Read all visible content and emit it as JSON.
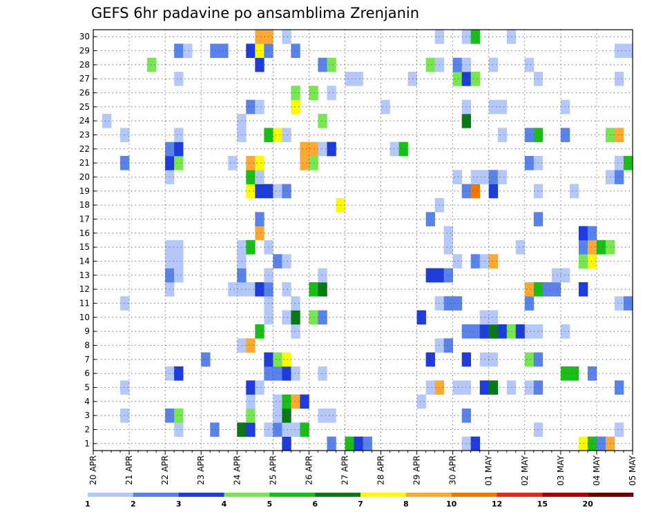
{
  "chart_data": {
    "type": "heatmap",
    "title": "GEFS 6hr padavine po ansamblima Zrenjanin",
    "x_tick_labels": [
      "20 APR",
      "21 APR",
      "22 APR",
      "23 APR",
      "24 APR",
      "25 APR",
      "26 APR",
      "27 APR",
      "28 APR",
      "29 APR",
      "30 APR",
      "01 MAY",
      "02 MAY",
      "03 MAY",
      "04 MAY",
      "05 MAY"
    ],
    "y_tick_labels": [
      "1",
      "2",
      "3",
      "4",
      "5",
      "6",
      "7",
      "8",
      "9",
      "10",
      "11",
      "12",
      "13",
      "14",
      "15",
      "16",
      "17",
      "18",
      "19",
      "20",
      "21",
      "22",
      "23",
      "24",
      "25",
      "26",
      "27",
      "28",
      "29",
      "30"
    ],
    "members": 30,
    "steps": 60,
    "step_hours": 6,
    "grid": true,
    "legend": {
      "position": "bottom",
      "labels": [
        "1",
        "2",
        "3",
        "4",
        "5",
        "6",
        "7",
        "8",
        "10",
        "12",
        "15",
        "20"
      ],
      "bins": [
        {
          "min": 1,
          "max": 2,
          "color": "#b4c8fa"
        },
        {
          "min": 2,
          "max": 3,
          "color": "#5a82eb"
        },
        {
          "min": 3,
          "max": 4,
          "color": "#1e3cdc"
        },
        {
          "min": 4,
          "max": 5,
          "color": "#78e650"
        },
        {
          "min": 5,
          "max": 6,
          "color": "#19be19"
        },
        {
          "min": 6,
          "max": 7,
          "color": "#0a7814"
        },
        {
          "min": 7,
          "max": 8,
          "color": "#fafa00"
        },
        {
          "min": 8,
          "max": 10,
          "color": "#faaa32"
        },
        {
          "min": 10,
          "max": 12,
          "color": "#f07800"
        },
        {
          "min": 12,
          "max": 15,
          "color": "#e62814"
        },
        {
          "min": 15,
          "max": 20,
          "color": "#aa0000"
        },
        {
          "min": 20,
          "max": 30,
          "color": "#6e0000"
        }
      ]
    },
    "cells": [
      [
        1,
        22,
        3
      ],
      [
        1,
        27,
        2
      ],
      [
        1,
        29,
        5
      ],
      [
        1,
        30,
        3
      ],
      [
        1,
        31,
        2
      ],
      [
        1,
        42,
        1
      ],
      [
        1,
        43,
        3
      ],
      [
        1,
        55,
        7
      ],
      [
        1,
        56,
        5
      ],
      [
        1,
        57,
        2
      ],
      [
        1,
        58,
        9
      ],
      [
        2,
        10,
        1
      ],
      [
        2,
        14,
        2
      ],
      [
        2,
        17,
        6
      ],
      [
        2,
        18,
        3
      ],
      [
        2,
        20,
        1
      ],
      [
        2,
        21,
        2
      ],
      [
        2,
        22,
        1
      ],
      [
        2,
        23,
        1
      ],
      [
        2,
        24,
        5
      ],
      [
        2,
        50,
        1
      ],
      [
        2,
        59,
        1
      ],
      [
        3,
        4,
        1
      ],
      [
        3,
        9,
        2
      ],
      [
        3,
        10,
        4
      ],
      [
        3,
        18,
        4
      ],
      [
        3,
        21,
        1
      ],
      [
        3,
        22,
        6
      ],
      [
        3,
        26,
        1
      ],
      [
        3,
        27,
        1
      ],
      [
        3,
        42,
        2
      ],
      [
        4,
        18,
        1
      ],
      [
        4,
        21,
        1
      ],
      [
        4,
        22,
        5
      ],
      [
        4,
        23,
        8
      ],
      [
        4,
        24,
        3
      ],
      [
        4,
        37,
        1
      ],
      [
        5,
        4,
        1
      ],
      [
        5,
        18,
        3
      ],
      [
        5,
        19,
        1
      ],
      [
        5,
        38,
        1
      ],
      [
        5,
        39,
        9
      ],
      [
        5,
        41,
        1
      ],
      [
        5,
        42,
        1
      ],
      [
        5,
        44,
        3
      ],
      [
        5,
        45,
        6
      ],
      [
        5,
        47,
        1
      ],
      [
        5,
        49,
        1
      ],
      [
        5,
        50,
        2
      ],
      [
        5,
        59,
        2
      ],
      [
        6,
        9,
        1
      ],
      [
        6,
        10,
        3
      ],
      [
        6,
        20,
        2
      ],
      [
        6,
        21,
        2
      ],
      [
        6,
        22,
        3
      ],
      [
        6,
        23,
        1
      ],
      [
        6,
        26,
        1
      ],
      [
        6,
        53,
        5
      ],
      [
        6,
        54,
        5
      ],
      [
        6,
        56,
        2
      ],
      [
        7,
        13,
        2
      ],
      [
        7,
        20,
        3
      ],
      [
        7,
        21,
        4
      ],
      [
        7,
        22,
        7
      ],
      [
        7,
        38,
        3
      ],
      [
        7,
        42,
        3
      ],
      [
        7,
        44,
        1
      ],
      [
        7,
        45,
        1
      ],
      [
        7,
        49,
        4
      ],
      [
        7,
        50,
        2
      ],
      [
        8,
        17,
        1
      ],
      [
        8,
        18,
        8
      ],
      [
        8,
        39,
        1
      ],
      [
        8,
        40,
        2
      ],
      [
        9,
        19,
        5
      ],
      [
        9,
        23,
        1
      ],
      [
        9,
        42,
        2
      ],
      [
        9,
        43,
        2
      ],
      [
        9,
        44,
        3
      ],
      [
        9,
        45,
        6
      ],
      [
        9,
        46,
        3
      ],
      [
        9,
        47,
        4
      ],
      [
        9,
        48,
        3
      ],
      [
        9,
        49,
        1
      ],
      [
        9,
        50,
        1
      ],
      [
        9,
        53,
        1
      ],
      [
        10,
        20,
        1
      ],
      [
        10,
        22,
        1
      ],
      [
        10,
        23,
        6
      ],
      [
        10,
        25,
        4
      ],
      [
        10,
        26,
        2
      ],
      [
        10,
        37,
        3
      ],
      [
        10,
        44,
        1
      ],
      [
        10,
        45,
        1
      ],
      [
        11,
        4,
        1
      ],
      [
        11,
        20,
        1
      ],
      [
        11,
        23,
        1
      ],
      [
        11,
        39,
        1
      ],
      [
        11,
        40,
        2
      ],
      [
        11,
        41,
        2
      ],
      [
        11,
        49,
        2
      ],
      [
        11,
        59,
        1
      ],
      [
        11,
        60,
        2
      ],
      [
        12,
        9,
        1
      ],
      [
        12,
        16,
        1
      ],
      [
        12,
        17,
        1
      ],
      [
        12,
        18,
        1
      ],
      [
        12,
        19,
        3
      ],
      [
        12,
        20,
        2
      ],
      [
        12,
        22,
        1
      ],
      [
        12,
        25,
        5
      ],
      [
        12,
        26,
        6
      ],
      [
        12,
        49,
        9
      ],
      [
        12,
        50,
        5
      ],
      [
        12,
        51,
        2
      ],
      [
        12,
        52,
        2
      ],
      [
        12,
        55,
        3
      ],
      [
        13,
        9,
        2
      ],
      [
        13,
        10,
        1
      ],
      [
        13,
        17,
        2
      ],
      [
        13,
        20,
        1
      ],
      [
        13,
        26,
        1
      ],
      [
        13,
        38,
        3
      ],
      [
        13,
        39,
        3
      ],
      [
        13,
        40,
        2
      ],
      [
        13,
        52,
        1
      ],
      [
        13,
        53,
        1
      ],
      [
        14,
        9,
        1
      ],
      [
        14,
        10,
        1
      ],
      [
        14,
        17,
        1
      ],
      [
        14,
        21,
        2
      ],
      [
        14,
        22,
        1
      ],
      [
        14,
        41,
        1
      ],
      [
        14,
        43,
        2
      ],
      [
        14,
        44,
        1
      ],
      [
        14,
        45,
        9
      ],
      [
        14,
        55,
        4
      ],
      [
        14,
        56,
        7
      ],
      [
        15,
        9,
        1
      ],
      [
        15,
        10,
        1
      ],
      [
        15,
        17,
        1
      ],
      [
        15,
        18,
        5
      ],
      [
        15,
        20,
        1
      ],
      [
        15,
        40,
        1
      ],
      [
        15,
        48,
        1
      ],
      [
        15,
        55,
        2
      ],
      [
        15,
        56,
        8
      ],
      [
        15,
        57,
        5
      ],
      [
        15,
        58,
        4
      ],
      [
        16,
        19,
        8
      ],
      [
        16,
        40,
        1
      ],
      [
        16,
        55,
        3
      ],
      [
        16,
        56,
        2
      ],
      [
        17,
        19,
        2
      ],
      [
        17,
        38,
        2
      ],
      [
        17,
        50,
        2
      ],
      [
        18,
        28,
        7
      ],
      [
        18,
        39,
        1
      ],
      [
        19,
        18,
        7
      ],
      [
        19,
        19,
        3
      ],
      [
        19,
        20,
        3
      ],
      [
        19,
        21,
        1
      ],
      [
        19,
        22,
        2
      ],
      [
        19,
        42,
        2
      ],
      [
        19,
        43,
        11
      ],
      [
        19,
        45,
        3
      ],
      [
        19,
        50,
        1
      ],
      [
        19,
        54,
        1
      ],
      [
        20,
        9,
        1
      ],
      [
        20,
        18,
        5
      ],
      [
        20,
        19,
        1
      ],
      [
        20,
        41,
        1
      ],
      [
        20,
        43,
        1
      ],
      [
        20,
        44,
        1
      ],
      [
        20,
        45,
        2
      ],
      [
        20,
        46,
        1
      ],
      [
        20,
        58,
        1
      ],
      [
        20,
        59,
        2
      ],
      [
        21,
        4,
        2
      ],
      [
        21,
        9,
        3
      ],
      [
        21,
        10,
        4
      ],
      [
        21,
        16,
        1
      ],
      [
        21,
        18,
        9
      ],
      [
        21,
        19,
        7
      ],
      [
        21,
        24,
        9
      ],
      [
        21,
        25,
        4
      ],
      [
        21,
        49,
        2
      ],
      [
        21,
        50,
        1
      ],
      [
        21,
        59,
        1
      ],
      [
        21,
        60,
        5
      ],
      [
        22,
        9,
        2
      ],
      [
        22,
        10,
        3
      ],
      [
        22,
        24,
        8
      ],
      [
        22,
        25,
        9
      ],
      [
        22,
        26,
        1
      ],
      [
        22,
        27,
        3
      ],
      [
        22,
        34,
        1
      ],
      [
        22,
        35,
        5
      ],
      [
        23,
        4,
        1
      ],
      [
        23,
        10,
        1
      ],
      [
        23,
        17,
        1
      ],
      [
        23,
        20,
        5
      ],
      [
        23,
        21,
        7
      ],
      [
        23,
        22,
        1
      ],
      [
        23,
        46,
        1
      ],
      [
        23,
        49,
        2
      ],
      [
        23,
        50,
        5
      ],
      [
        23,
        53,
        2
      ],
      [
        23,
        58,
        4
      ],
      [
        23,
        59,
        8
      ],
      [
        24,
        2,
        1
      ],
      [
        24,
        17,
        1
      ],
      [
        24,
        26,
        4
      ],
      [
        24,
        42,
        6
      ],
      [
        25,
        18,
        2
      ],
      [
        25,
        19,
        1
      ],
      [
        25,
        23,
        7
      ],
      [
        25,
        33,
        1
      ],
      [
        25,
        42,
        1
      ],
      [
        25,
        45,
        1
      ],
      [
        25,
        46,
        1
      ],
      [
        25,
        53,
        1
      ],
      [
        26,
        23,
        4
      ],
      [
        26,
        25,
        4
      ],
      [
        26,
        27,
        1
      ],
      [
        27,
        10,
        1
      ],
      [
        27,
        29,
        1
      ],
      [
        27,
        30,
        1
      ],
      [
        27,
        36,
        1
      ],
      [
        27,
        41,
        4
      ],
      [
        27,
        42,
        3
      ],
      [
        27,
        43,
        4
      ],
      [
        27,
        50,
        1
      ],
      [
        27,
        59,
        1
      ],
      [
        28,
        7,
        4
      ],
      [
        28,
        19,
        3
      ],
      [
        28,
        26,
        2
      ],
      [
        28,
        27,
        4
      ],
      [
        28,
        38,
        4
      ],
      [
        28,
        39,
        1
      ],
      [
        28,
        41,
        2
      ],
      [
        28,
        42,
        1
      ],
      [
        28,
        45,
        1
      ],
      [
        28,
        49,
        1
      ],
      [
        29,
        10,
        2
      ],
      [
        29,
        11,
        1
      ],
      [
        29,
        14,
        2
      ],
      [
        29,
        15,
        2
      ],
      [
        29,
        18,
        3
      ],
      [
        29,
        19,
        7
      ],
      [
        29,
        20,
        2
      ],
      [
        29,
        23,
        2
      ],
      [
        29,
        59,
        1
      ],
      [
        29,
        60,
        1
      ],
      [
        30,
        19,
        9
      ],
      [
        30,
        20,
        8
      ],
      [
        30,
        22,
        1
      ],
      [
        30,
        39,
        1
      ],
      [
        30,
        42,
        1
      ],
      [
        30,
        43,
        5
      ],
      [
        30,
        47,
        1
      ]
    ]
  }
}
